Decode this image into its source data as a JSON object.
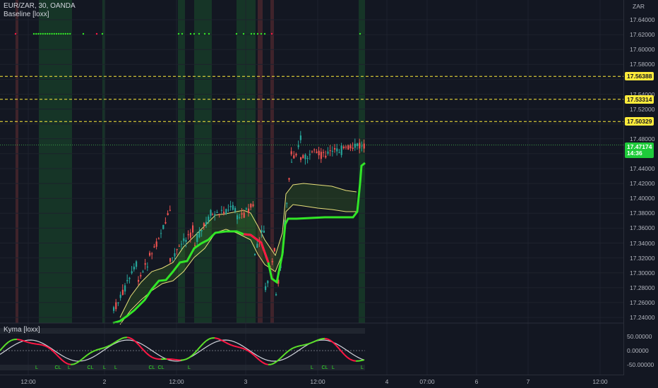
{
  "header": {
    "symbol_line": "EUR/ZAR, 30, OANDA",
    "indicator": "Baseline [loxx]",
    "oscillator": "Kyma [loxx]"
  },
  "price_axis": {
    "currency": "ZAR",
    "labels": [
      "17.64000",
      "17.62000",
      "17.60000",
      "17.58000",
      "17.54000",
      "17.52000",
      "17.48000",
      "17.44000",
      "17.42000",
      "17.40000",
      "17.38000",
      "17.36000",
      "17.34000",
      "17.32000",
      "17.30000",
      "17.28000",
      "17.26000",
      "17.24000"
    ],
    "tags": [
      {
        "value": "17.56388",
        "kind": "level"
      },
      {
        "value": "17.53314",
        "kind": "level"
      },
      {
        "value": "17.50329",
        "kind": "level"
      },
      {
        "value": "17.47174",
        "kind": "last",
        "countdown": "14:36"
      }
    ]
  },
  "oscillator_axis": {
    "labels": [
      "50.00000",
      "0.00000",
      "-50.00000"
    ]
  },
  "time_axis": {
    "labels": [
      "12:00",
      "2",
      "12:00",
      "3",
      "12:00",
      "4",
      "07:00",
      "6",
      "7",
      "12:00"
    ]
  },
  "signal_labels": {
    "long": "L",
    "close": "CL"
  },
  "colors": {
    "background": "#131722",
    "up": "#26a69a",
    "down": "#ef5350",
    "baseline": "#32e627",
    "band": "#e8e07a",
    "level_line": "#ffeb3b",
    "kyma_bull": "#5ce02a",
    "kyma_bear": "#ff1744",
    "kyma_signal": "#d1d4dc"
  }
}
